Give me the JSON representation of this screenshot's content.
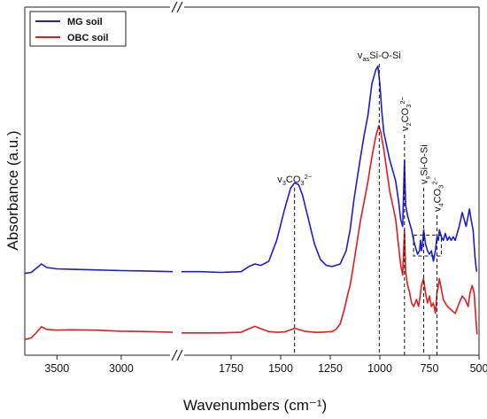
{
  "chart_data": {
    "type": "line",
    "xlabel": "Wavenumbers (cm⁻¹)",
    "ylabel": "Absorbance (a.u.)",
    "x_reversed": true,
    "x_axis_break": [
      2600,
      2000
    ],
    "xlim_left": [
      3750,
      2600
    ],
    "xlim_right": [
      2000,
      500
    ],
    "ylim": [
      0,
      1
    ],
    "x_ticks": [
      3500,
      3000,
      1750,
      1500,
      1250,
      1000,
      750,
      500
    ],
    "x_tick_labels": [
      "3500",
      "3000",
      "1750",
      "1500",
      "1250",
      "1000",
      "750",
      "500"
    ],
    "legend_position": "top-left",
    "series": [
      {
        "name": "MG soil",
        "color": "#1c1cd8",
        "segments": [
          [
            [
              3750,
              0.235
            ],
            [
              3700,
              0.238
            ],
            [
              3660,
              0.25
            ],
            [
              3620,
              0.262
            ],
            [
              3580,
              0.252
            ],
            [
              3500,
              0.248
            ],
            [
              3400,
              0.247
            ],
            [
              3200,
              0.245
            ],
            [
              3000,
              0.243
            ],
            [
              2800,
              0.242
            ],
            [
              2600,
              0.24
            ]
          ],
          [
            [
              2000,
              0.24
            ],
            [
              1900,
              0.24
            ],
            [
              1800,
              0.238
            ],
            [
              1700,
              0.24
            ],
            [
              1660,
              0.255
            ],
            [
              1630,
              0.262
            ],
            [
              1600,
              0.258
            ],
            [
              1560,
              0.27
            ],
            [
              1520,
              0.33
            ],
            [
              1480,
              0.42
            ],
            [
              1450,
              0.48
            ],
            [
              1430,
              0.495
            ],
            [
              1410,
              0.49
            ],
            [
              1390,
              0.46
            ],
            [
              1360,
              0.39
            ],
            [
              1330,
              0.32
            ],
            [
              1300,
              0.275
            ],
            [
              1270,
              0.258
            ],
            [
              1240,
              0.255
            ],
            [
              1200,
              0.262
            ],
            [
              1170,
              0.3
            ],
            [
              1150,
              0.36
            ],
            [
              1130,
              0.45
            ],
            [
              1100,
              0.56
            ],
            [
              1080,
              0.63
            ],
            [
              1060,
              0.69
            ],
            [
              1040,
              0.78
            ],
            [
              1020,
              0.82
            ],
            [
              1010,
              0.83
            ],
            [
              1000,
              0.78
            ],
            [
              990,
              0.7
            ],
            [
              980,
              0.64
            ],
            [
              965,
              0.6
            ],
            [
              950,
              0.56
            ],
            [
              935,
              0.53
            ],
            [
              920,
              0.5
            ],
            [
              905,
              0.44
            ],
            [
              895,
              0.39
            ],
            [
              885,
              0.37
            ],
            [
              876,
              0.56
            ],
            [
              870,
              0.43
            ],
            [
              860,
              0.4
            ],
            [
              850,
              0.38
            ],
            [
              840,
              0.36
            ],
            [
              830,
              0.33
            ],
            [
              820,
              0.31
            ],
            [
              810,
              0.29
            ],
            [
              800,
              0.3
            ],
            [
              795,
              0.33
            ],
            [
              790,
              0.3
            ],
            [
              785,
              0.32
            ],
            [
              779,
              0.36
            ],
            [
              770,
              0.32
            ],
            [
              760,
              0.3
            ],
            [
              750,
              0.29
            ],
            [
              740,
              0.3
            ],
            [
              730,
              0.27
            ],
            [
              720,
              0.3
            ],
            [
              712,
              0.34
            ],
            [
              705,
              0.33
            ],
            [
              700,
              0.36
            ],
            [
              690,
              0.34
            ],
            [
              680,
              0.33
            ],
            [
              670,
              0.35
            ],
            [
              660,
              0.33
            ],
            [
              650,
              0.34
            ],
            [
              640,
              0.33
            ],
            [
              630,
              0.34
            ],
            [
              620,
              0.33
            ],
            [
              600,
              0.37
            ],
            [
              585,
              0.41
            ],
            [
              575,
              0.39
            ],
            [
              565,
              0.37
            ],
            [
              555,
              0.4
            ],
            [
              548,
              0.42
            ],
            [
              540,
              0.39
            ],
            [
              530,
              0.36
            ],
            [
              520,
              0.28
            ],
            [
              512,
              0.24
            ]
          ]
        ]
      },
      {
        "name": "OBC soil",
        "color": "#e01c1c",
        "segments": [
          [
            [
              3750,
              0.045
            ],
            [
              3700,
              0.05
            ],
            [
              3660,
              0.065
            ],
            [
              3620,
              0.082
            ],
            [
              3580,
              0.074
            ],
            [
              3500,
              0.072
            ],
            [
              3400,
              0.073
            ],
            [
              3200,
              0.072
            ],
            [
              3000,
              0.069
            ],
            [
              2800,
              0.068
            ],
            [
              2600,
              0.066
            ]
          ],
          [
            [
              2000,
              0.064
            ],
            [
              1900,
              0.064
            ],
            [
              1800,
              0.064
            ],
            [
              1700,
              0.066
            ],
            [
              1660,
              0.076
            ],
            [
              1630,
              0.083
            ],
            [
              1600,
              0.076
            ],
            [
              1560,
              0.068
            ],
            [
              1520,
              0.066
            ],
            [
              1480,
              0.067
            ],
            [
              1450,
              0.073
            ],
            [
              1430,
              0.077
            ],
            [
              1410,
              0.074
            ],
            [
              1380,
              0.069
            ],
            [
              1330,
              0.066
            ],
            [
              1300,
              0.066
            ],
            [
              1270,
              0.067
            ],
            [
              1240,
              0.068
            ],
            [
              1220,
              0.075
            ],
            [
              1200,
              0.09
            ],
            [
              1180,
              0.13
            ],
            [
              1160,
              0.18
            ],
            [
              1150,
              0.2
            ],
            [
              1130,
              0.27
            ],
            [
              1100,
              0.38
            ],
            [
              1080,
              0.44
            ],
            [
              1060,
              0.5
            ],
            [
              1040,
              0.57
            ],
            [
              1020,
              0.63
            ],
            [
              1005,
              0.66
            ],
            [
              995,
              0.64
            ],
            [
              980,
              0.59
            ],
            [
              965,
              0.53
            ],
            [
              950,
              0.47
            ],
            [
              935,
              0.43
            ],
            [
              920,
              0.39
            ],
            [
              905,
              0.31
            ],
            [
              895,
              0.26
            ],
            [
              885,
              0.23
            ],
            [
              876,
              0.36
            ],
            [
              870,
              0.24
            ],
            [
              860,
              0.2
            ],
            [
              850,
              0.18
            ],
            [
              840,
              0.15
            ],
            [
              830,
              0.14
            ],
            [
              815,
              0.16
            ],
            [
              805,
              0.14
            ],
            [
              797,
              0.17
            ],
            [
              790,
              0.2
            ],
            [
              780,
              0.22
            ],
            [
              770,
              0.18
            ],
            [
              760,
              0.15
            ],
            [
              750,
              0.17
            ],
            [
              740,
              0.14
            ],
            [
              730,
              0.15
            ],
            [
              720,
              0.12
            ],
            [
              712,
              0.18
            ],
            [
              705,
              0.2
            ],
            [
              700,
              0.22
            ],
            [
              690,
              0.19
            ],
            [
              680,
              0.16
            ],
            [
              660,
              0.14
            ],
            [
              640,
              0.13
            ],
            [
              620,
              0.12
            ],
            [
              600,
              0.15
            ],
            [
              585,
              0.17
            ],
            [
              570,
              0.16
            ],
            [
              555,
              0.14
            ],
            [
              545,
              0.18
            ],
            [
              535,
              0.2
            ],
            [
              525,
              0.18
            ],
            [
              515,
              0.1
            ],
            [
              510,
              0.06
            ]
          ]
        ]
      }
    ],
    "annotations": [
      {
        "x": 1430,
        "base": "v",
        "sub": "3",
        "main": "CO",
        "sub2": "3",
        "sup": "2−",
        "orient": "horizontal"
      },
      {
        "x": 1003,
        "base": "v",
        "sub": "as",
        "main": "Si-O-Si",
        "orient": "horizontal"
      },
      {
        "x": 876,
        "base": "v",
        "sub": "2",
        "main": "CO",
        "sub2": "3",
        "sup": "2−",
        "orient": "vertical"
      },
      {
        "x": 779,
        "base": "v",
        "sub": "s",
        "main": "Si-O-Si",
        "orient": "vertical"
      },
      {
        "x": 712,
        "base": "v",
        "sub": "4",
        "main": "CO",
        "sub2": "3",
        "sup": "2−",
        "orient": "vertical"
      }
    ],
    "highlight_box": {
      "x": [
        830,
        690
      ],
      "y": [
        0.285,
        0.345
      ]
    }
  }
}
